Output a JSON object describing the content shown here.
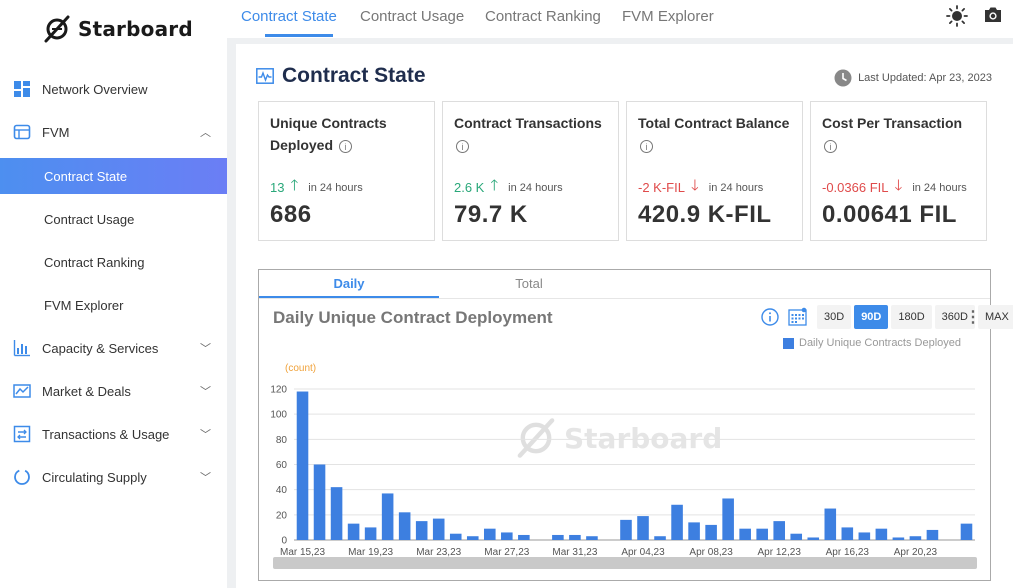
{
  "brand": {
    "name": "Starboard"
  },
  "sidebar": {
    "items": [
      {
        "label": "Network Overview",
        "icon": "dashboard-icon"
      },
      {
        "label": "FVM",
        "icon": "fvm-icon",
        "expanded": true
      },
      {
        "label": "Capacity & Services",
        "icon": "bar-chart-icon"
      },
      {
        "label": "Market & Deals",
        "icon": "market-icon"
      },
      {
        "label": "Transactions & Usage",
        "icon": "transactions-icon"
      },
      {
        "label": "Circulating Supply",
        "icon": "circle-icon"
      }
    ],
    "fvm_sub": [
      {
        "label": "Contract State",
        "active": true
      },
      {
        "label": "Contract Usage"
      },
      {
        "label": "Contract Ranking"
      },
      {
        "label": "FVM Explorer"
      }
    ]
  },
  "top_tabs": [
    "Contract State",
    "Contract Usage",
    "Contract Ranking",
    "FVM Explorer"
  ],
  "page": {
    "title": "Contract State",
    "last_updated": "Last Updated: Apr 23, 2023"
  },
  "cards": [
    {
      "title": "Unique Contracts Deployed",
      "delta": "13",
      "direction": "up",
      "period": "in 24 hours",
      "value": "686"
    },
    {
      "title": "Contract Transactions",
      "delta": "2.6 K",
      "direction": "up",
      "period": "in 24 hours",
      "value": "79.7 K"
    },
    {
      "title": "Total Contract Balance",
      "delta": "-2 K-FIL",
      "direction": "down",
      "period": "in 24 hours",
      "value": "420.9 K-FIL"
    },
    {
      "title": "Cost Per Transaction",
      "delta": "-0.0366 FIL",
      "direction": "down",
      "period": "in 24 hours",
      "value": "0.00641 FIL"
    }
  ],
  "chart_tabs": [
    "Daily",
    "Total"
  ],
  "ranges": [
    "30D",
    "90D",
    "180D",
    "360D",
    "MAX"
  ],
  "colors": {
    "accent": "#3d8be9",
    "bar": "#3d7fe0",
    "up": "#2aa87a",
    "down": "#e04b4b"
  },
  "chart_data": {
    "type": "bar",
    "title": "Daily Unique Contract Deployment",
    "unit_label": "(count)",
    "legend": "Daily Unique Contracts Deployed",
    "ylim": [
      0,
      120
    ],
    "yticks": [
      0,
      20,
      40,
      60,
      80,
      100,
      120
    ],
    "x_tick_labels": [
      "Mar 15,23",
      "Mar 19,23",
      "Mar 23,23",
      "Mar 27,23",
      "Mar 31,23",
      "Apr 04,23",
      "Apr 08,23",
      "Apr 12,23",
      "Apr 16,23",
      "Apr 20,23"
    ],
    "start_label": "Mar 15,23",
    "values": [
      118,
      60,
      42,
      13,
      10,
      37,
      22,
      15,
      17,
      5,
      3,
      9,
      6,
      4,
      0,
      4,
      4,
      3,
      0,
      16,
      19,
      3,
      28,
      14,
      12,
      33,
      9,
      9,
      15,
      5,
      2,
      25,
      10,
      6,
      9,
      2,
      3,
      8,
      0,
      13
    ]
  }
}
